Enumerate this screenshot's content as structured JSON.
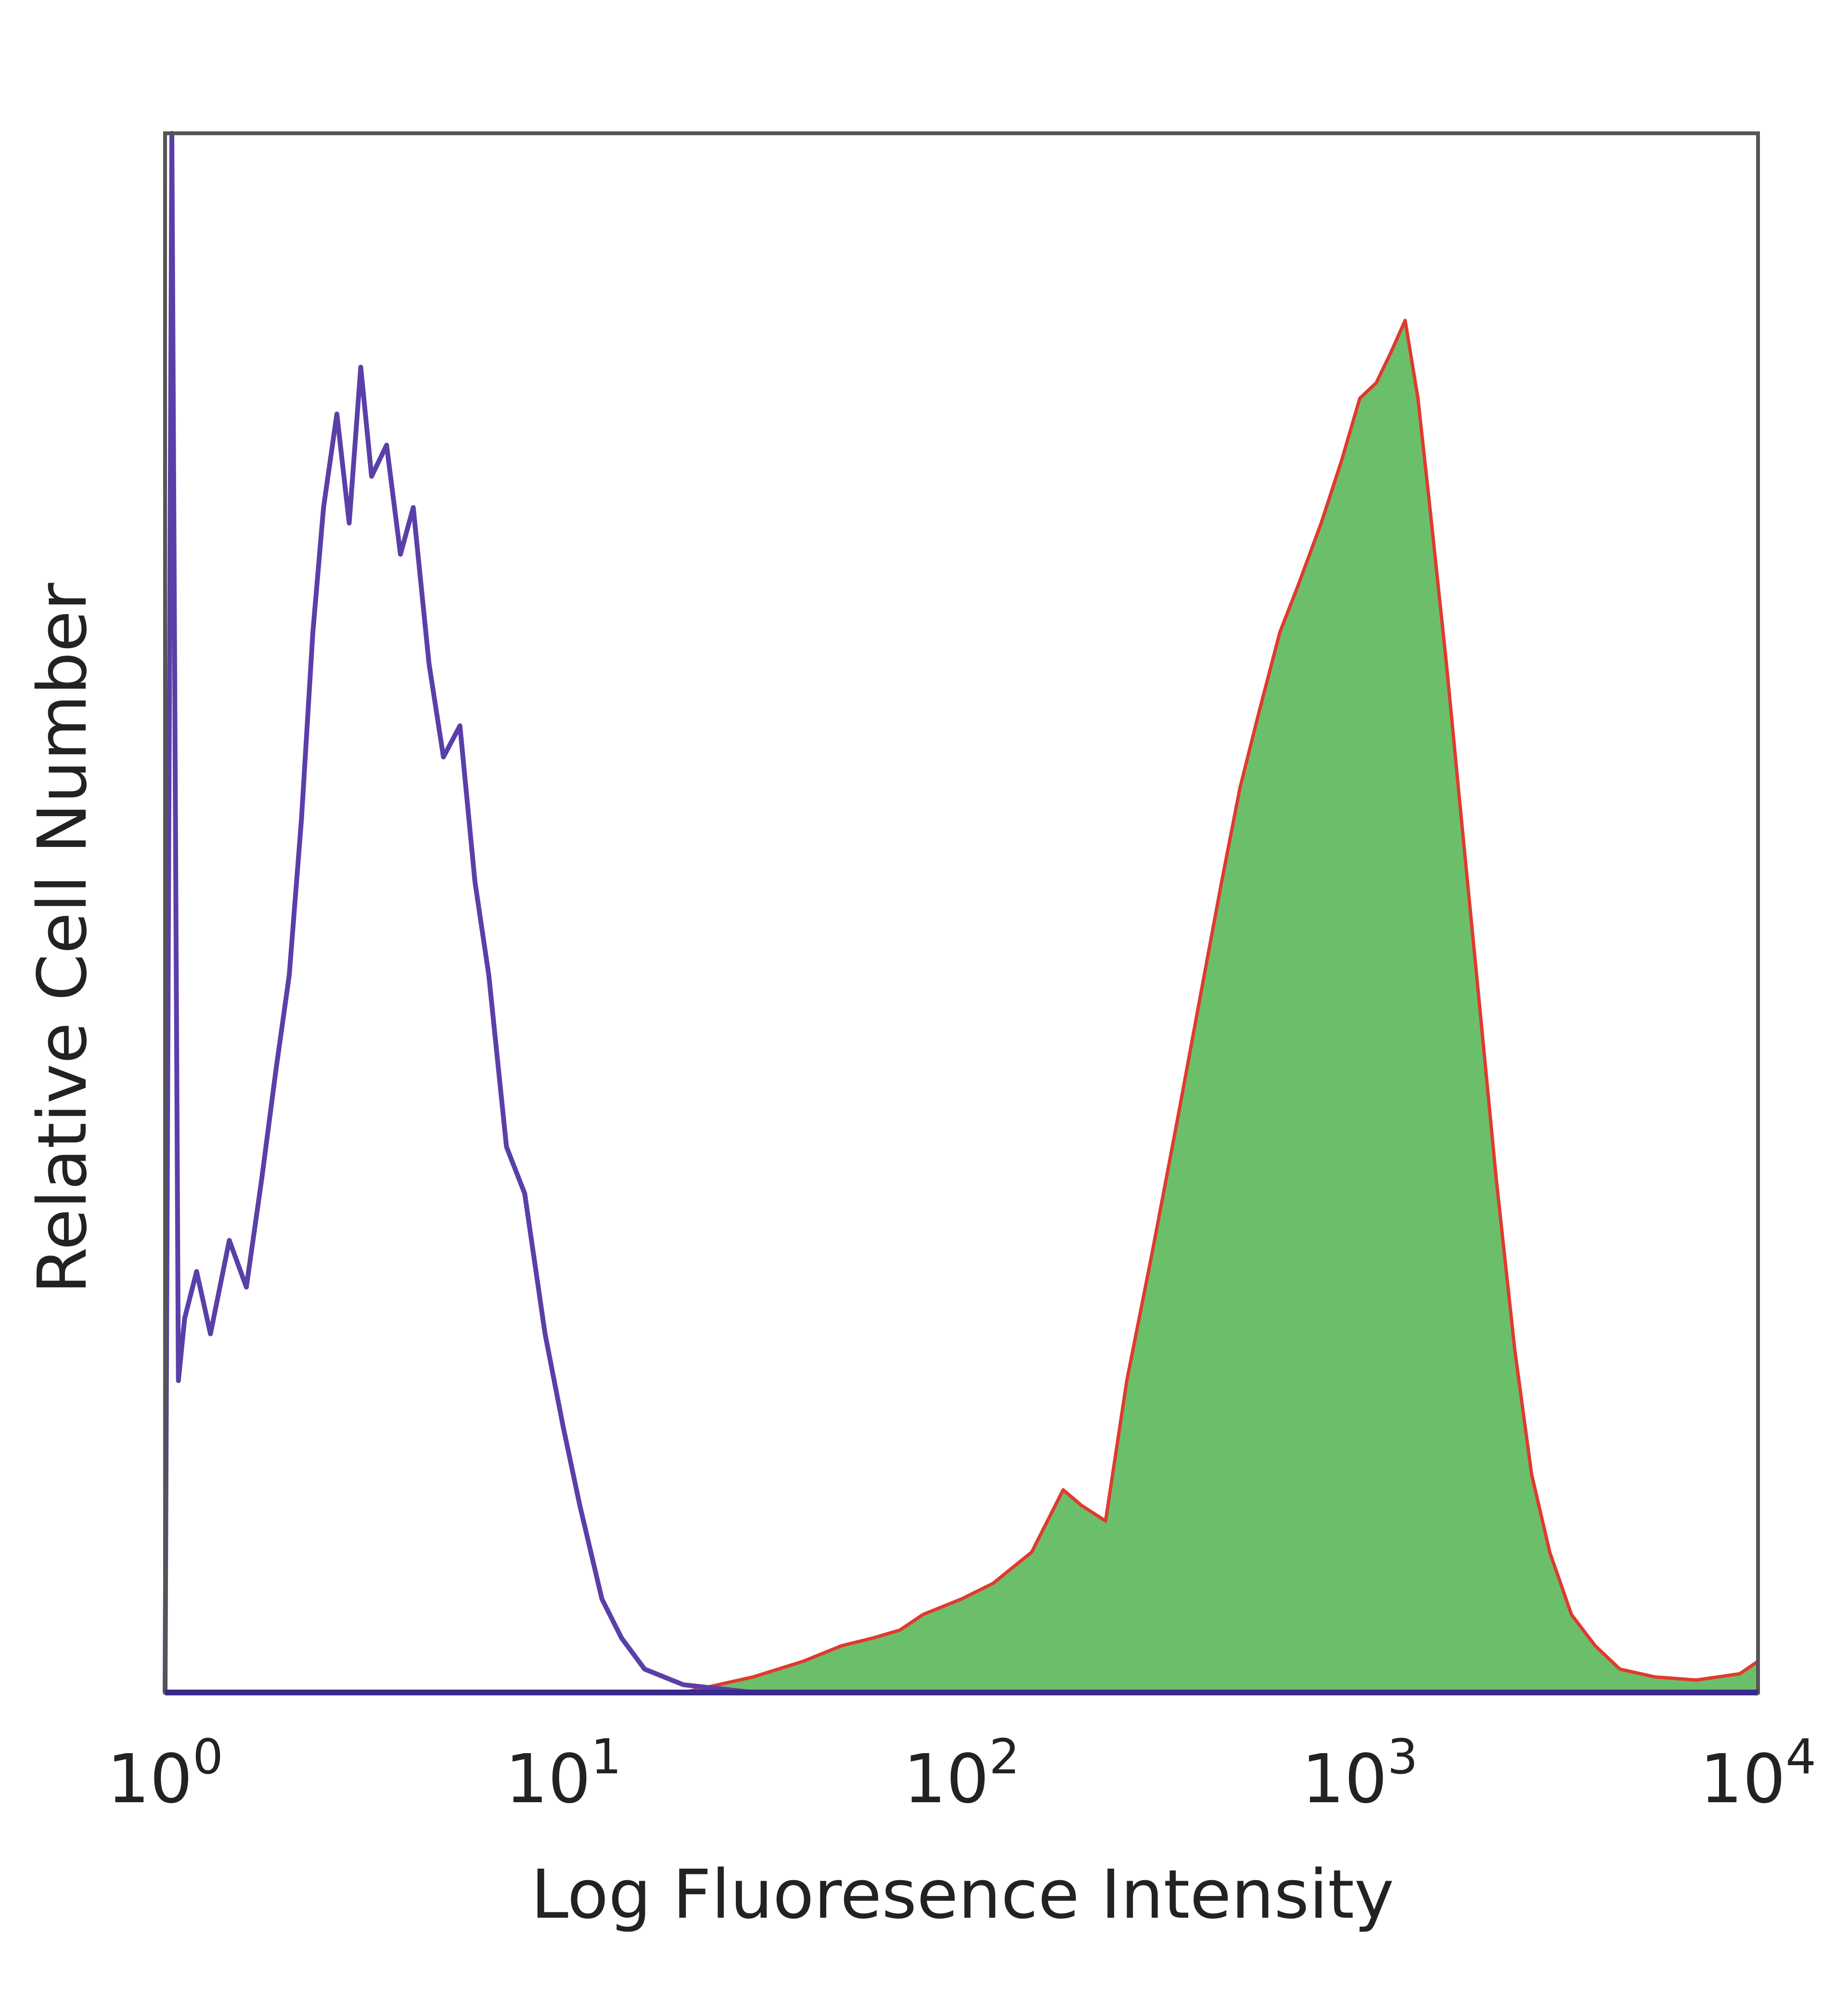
{
  "chart_data": {
    "type": "area",
    "xlabel": "Log Fluoresence Intensity",
    "ylabel": "Relative Cell Number",
    "xscale": "log",
    "xlim": [
      1,
      10000
    ],
    "ylim": [
      0,
      1
    ],
    "grid": false,
    "legend": "none",
    "x_ticks": [
      {
        "value": 1,
        "base": "10",
        "exp": "0"
      },
      {
        "value": 10,
        "base": "10",
        "exp": "1"
      },
      {
        "value": 100,
        "base": "10",
        "exp": "2"
      },
      {
        "value": 1000,
        "base": "10",
        "exp": "3"
      },
      {
        "value": 10000,
        "base": "10",
        "exp": "4"
      }
    ],
    "series": [
      {
        "style": "outline",
        "color": "#5a3fa8",
        "points": [
          [
            1.0,
            0.0
          ],
          [
            1.04,
            1.0
          ],
          [
            1.08,
            0.2
          ],
          [
            1.12,
            0.24
          ],
          [
            1.2,
            0.27
          ],
          [
            1.3,
            0.23
          ],
          [
            1.45,
            0.29
          ],
          [
            1.6,
            0.26
          ],
          [
            1.75,
            0.33
          ],
          [
            1.9,
            0.4
          ],
          [
            2.05,
            0.46
          ],
          [
            2.2,
            0.56
          ],
          [
            2.35,
            0.68
          ],
          [
            2.5,
            0.76
          ],
          [
            2.7,
            0.82
          ],
          [
            2.9,
            0.75
          ],
          [
            3.1,
            0.85
          ],
          [
            3.3,
            0.78
          ],
          [
            3.6,
            0.8
          ],
          [
            3.9,
            0.73
          ],
          [
            4.2,
            0.76
          ],
          [
            4.6,
            0.66
          ],
          [
            5.0,
            0.6
          ],
          [
            5.5,
            0.62
          ],
          [
            6.0,
            0.52
          ],
          [
            6.5,
            0.46
          ],
          [
            7.2,
            0.35
          ],
          [
            8.0,
            0.32
          ],
          [
            9.0,
            0.23
          ],
          [
            10.0,
            0.17
          ],
          [
            11.0,
            0.12
          ],
          [
            12.5,
            0.06
          ],
          [
            14.0,
            0.035
          ],
          [
            16.0,
            0.015
          ],
          [
            20.0,
            0.005
          ],
          [
            30.0,
            0.0
          ]
        ]
      },
      {
        "style": "filled",
        "fill": "#6cbf6a",
        "color": "#e03a2f",
        "points": [
          [
            1.0,
            0.0
          ],
          [
            20.0,
            0.0
          ],
          [
            30.0,
            0.01
          ],
          [
            40.0,
            0.02
          ],
          [
            50.0,
            0.03
          ],
          [
            60.0,
            0.035
          ],
          [
            70.0,
            0.04
          ],
          [
            80.0,
            0.05
          ],
          [
            100.0,
            0.06
          ],
          [
            120.0,
            0.07
          ],
          [
            150.0,
            0.09
          ],
          [
            180.0,
            0.13
          ],
          [
            200.0,
            0.12
          ],
          [
            230.0,
            0.11
          ],
          [
            260.0,
            0.2
          ],
          [
            300.0,
            0.28
          ],
          [
            350.0,
            0.37
          ],
          [
            400.0,
            0.45
          ],
          [
            450.0,
            0.52
          ],
          [
            500.0,
            0.58
          ],
          [
            560.0,
            0.63
          ],
          [
            630.0,
            0.68
          ],
          [
            700.0,
            0.71
          ],
          [
            800.0,
            0.75
          ],
          [
            900.0,
            0.79
          ],
          [
            1000.0,
            0.83
          ],
          [
            1100.0,
            0.84
          ],
          [
            1200.0,
            0.86
          ],
          [
            1300.0,
            0.88
          ],
          [
            1400.0,
            0.83
          ],
          [
            1500.0,
            0.76
          ],
          [
            1650.0,
            0.66
          ],
          [
            1800.0,
            0.56
          ],
          [
            2000.0,
            0.44
          ],
          [
            2200.0,
            0.33
          ],
          [
            2450.0,
            0.22
          ],
          [
            2700.0,
            0.14
          ],
          [
            3000.0,
            0.09
          ],
          [
            3400.0,
            0.05
          ],
          [
            3900.0,
            0.03
          ],
          [
            4500.0,
            0.015
          ],
          [
            5500.0,
            0.01
          ],
          [
            7000.0,
            0.008
          ],
          [
            9000.0,
            0.012
          ],
          [
            10000.0,
            0.02
          ]
        ]
      }
    ]
  }
}
